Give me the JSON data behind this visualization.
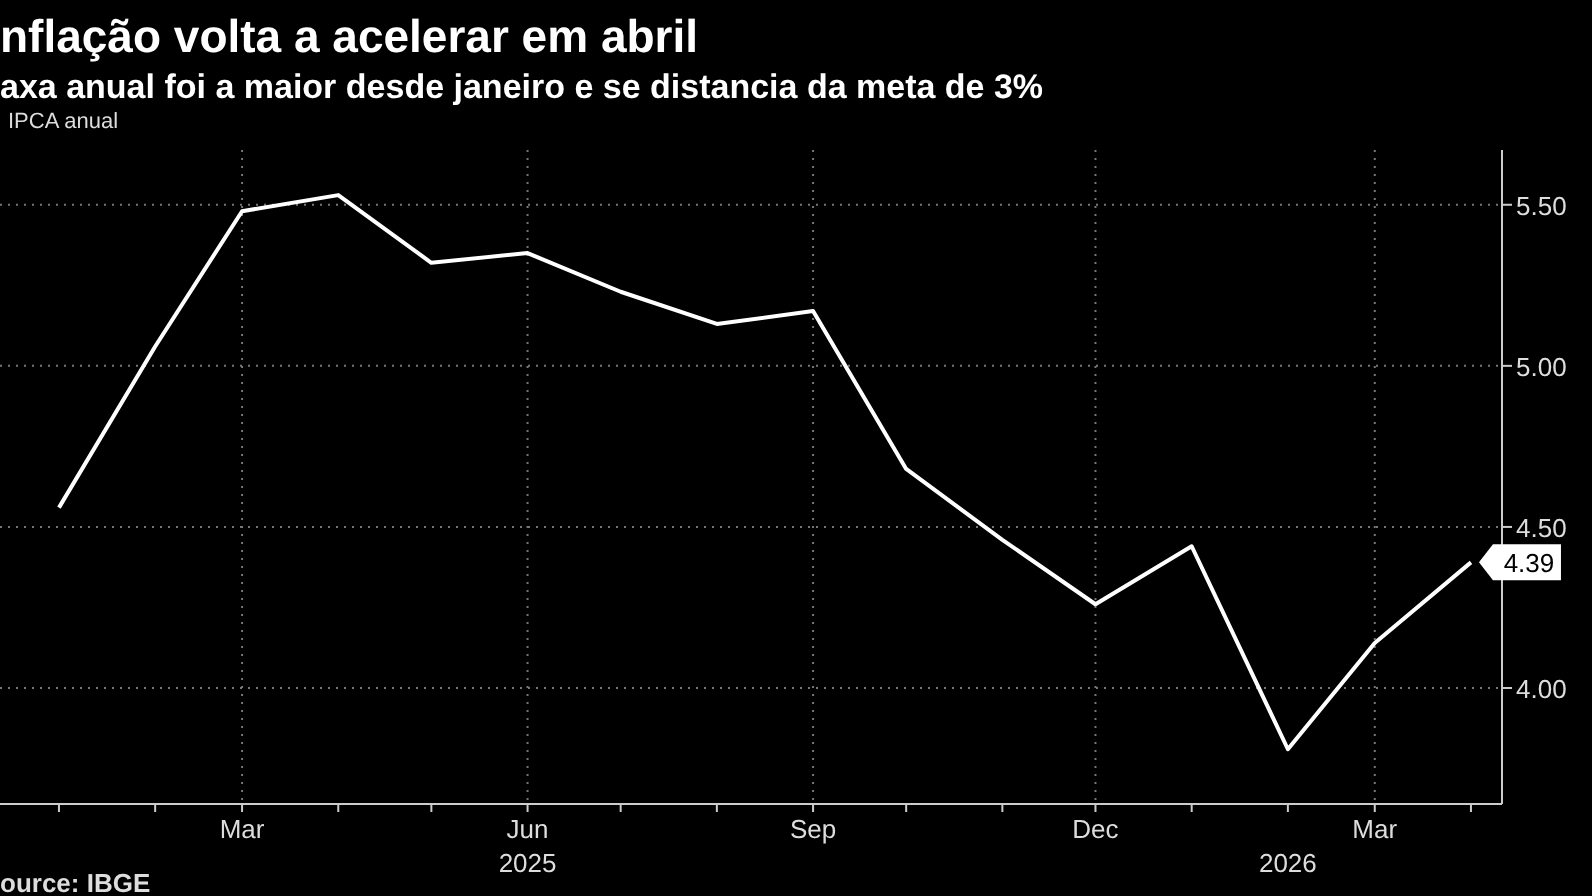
{
  "chart_data": {
    "type": "line",
    "title": "nflação volta a acelerar em abril",
    "subtitle": "axa anual foi a maior desde janeiro e se distancia da meta de 3%",
    "x": [
      "2025-01",
      "2025-02",
      "2025-03",
      "2025-04",
      "2025-05",
      "2025-06",
      "2025-07",
      "2025-08",
      "2025-09",
      "2025-10",
      "2025-11",
      "2025-12",
      "2026-01",
      "2026-02",
      "2026-03",
      "2026-04"
    ],
    "series": [
      {
        "name": "IPCA anual",
        "color": "#ffffff",
        "values": [
          4.56,
          5.06,
          5.48,
          5.53,
          5.32,
          5.35,
          5.23,
          5.13,
          5.17,
          4.68,
          4.46,
          4.26,
          4.44,
          3.81,
          4.14,
          4.39
        ],
        "value_labels": [
          null,
          null,
          null,
          null,
          null,
          null,
          null,
          null,
          null,
          null,
          null,
          null,
          null,
          null,
          null,
          "4.39"
        ]
      }
    ],
    "xlim": [
      "2024-12-13",
      "2026-04-11"
    ],
    "xticks": [
      {
        "value": "2025-01",
        "label": null
      },
      {
        "value": "2025-02",
        "label": null
      },
      {
        "value": "2025-03",
        "label": "Mar"
      },
      {
        "value": "2025-04",
        "label": null
      },
      {
        "value": "2025-05",
        "label": null
      },
      {
        "value": "2025-06",
        "label": "Jun"
      },
      {
        "value": "2025-07",
        "label": null
      },
      {
        "value": "2025-08",
        "label": null
      },
      {
        "value": "2025-09",
        "label": "Sep"
      },
      {
        "value": "2025-10",
        "label": null
      },
      {
        "value": "2025-11",
        "label": null
      },
      {
        "value": "2025-12",
        "label": "Dec"
      },
      {
        "value": "2026-01",
        "label": null
      },
      {
        "value": "2026-02",
        "label": null
      },
      {
        "value": "2026-03",
        "label": "Mar"
      },
      {
        "value": "2026-04",
        "label": null
      }
    ],
    "ylim": [
      3.64,
      5.67
    ],
    "yticks": [
      {
        "value": 4,
        "label": "4.00"
      },
      {
        "value": 4.5,
        "label": "4.50"
      },
      {
        "value": 5,
        "label": "5.00"
      },
      {
        "value": 5.5,
        "label": "5.50"
      }
    ],
    "grid": true,
    "legend": "top left",
    "marker": "none",
    "line_style": "solid",
    "x2lim": [
      "2024-12-13",
      "2026-04-11"
    ],
    "x2ticks": [
      {
        "value": "2025-06",
        "label": "2025"
      },
      {
        "value": "2026-02",
        "label": "2026"
      }
    ],
    "annotations": [
      "ource: IBGE"
    ]
  }
}
